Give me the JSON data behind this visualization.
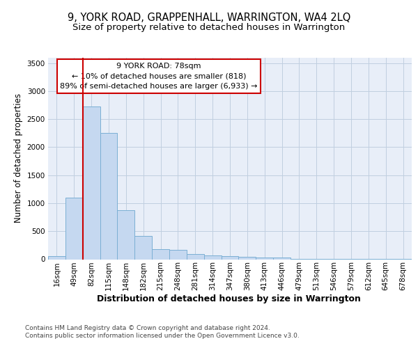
{
  "title": "9, YORK ROAD, GRAPPENHALL, WARRINGTON, WA4 2LQ",
  "subtitle": "Size of property relative to detached houses in Warrington",
  "xlabel": "Distribution of detached houses by size in Warrington",
  "ylabel": "Number of detached properties",
  "bar_labels": [
    "16sqm",
    "49sqm",
    "82sqm",
    "115sqm",
    "148sqm",
    "182sqm",
    "215sqm",
    "248sqm",
    "281sqm",
    "314sqm",
    "347sqm",
    "380sqm",
    "413sqm",
    "446sqm",
    "479sqm",
    "513sqm",
    "546sqm",
    "579sqm",
    "612sqm",
    "645sqm",
    "678sqm"
  ],
  "bar_values": [
    50,
    1100,
    2720,
    2250,
    870,
    415,
    175,
    170,
    95,
    65,
    55,
    40,
    30,
    25,
    5,
    3,
    2,
    2,
    1,
    1,
    1
  ],
  "bar_color": "#c5d8f0",
  "bar_edge_color": "#7bafd4",
  "vline_x_index": 2,
  "vline_color": "#cc0000",
  "annotation_text": "9 YORK ROAD: 78sqm\n← 10% of detached houses are smaller (818)\n89% of semi-detached houses are larger (6,933) →",
  "annotation_box_color": "#cc0000",
  "ylim": [
    0,
    3600
  ],
  "yticks": [
    0,
    500,
    1000,
    1500,
    2000,
    2500,
    3000,
    3500
  ],
  "footer_text": "Contains HM Land Registry data © Crown copyright and database right 2024.\nContains public sector information licensed under the Open Government Licence v3.0.",
  "bg_color": "#e8eef8",
  "grid_color": "#c0cfe0",
  "title_fontsize": 10.5,
  "subtitle_fontsize": 9.5,
  "xlabel_fontsize": 9,
  "ylabel_fontsize": 8.5,
  "tick_fontsize": 7.5,
  "annotation_fontsize": 8,
  "footer_fontsize": 6.5
}
